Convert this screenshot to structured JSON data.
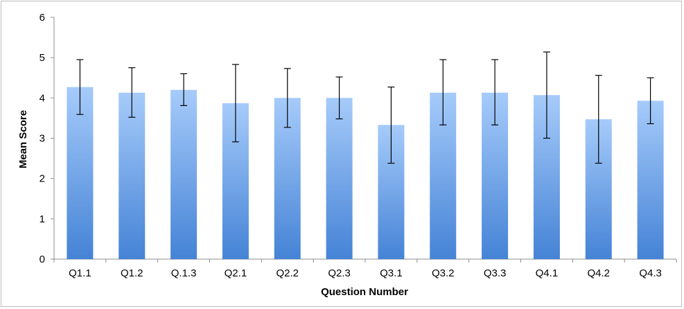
{
  "chart_data": {
    "type": "bar",
    "title": "",
    "xlabel": "Question Number",
    "ylabel": "Mean Score",
    "ylim": [
      0,
      6
    ],
    "yticks": [
      0,
      1,
      2,
      3,
      4,
      5,
      6
    ],
    "grid": false,
    "legend": "none",
    "categories": [
      "Q1.1",
      "Q1.2",
      "Q.1.3",
      "Q2.1",
      "Q2.2",
      "Q2.3",
      "Q3.1",
      "Q3.2",
      "Q3.3",
      "Q4.1",
      "Q4.2",
      "Q4.3"
    ],
    "values": [
      4.27,
      4.13,
      4.2,
      3.87,
      4.0,
      4.0,
      3.33,
      4.13,
      4.13,
      4.07,
      3.47,
      3.93
    ],
    "error_low": [
      3.59,
      3.52,
      3.81,
      2.91,
      3.27,
      3.48,
      2.38,
      3.33,
      3.33,
      3.0,
      2.38,
      3.36
    ],
    "error_high": [
      4.95,
      4.75,
      4.6,
      4.83,
      4.73,
      4.52,
      4.27,
      4.95,
      4.95,
      5.14,
      4.56,
      4.5
    ],
    "colors": {
      "bar_top": "#a6cbfa",
      "bar_bottom": "#4583d6",
      "axis": "#8c8c8c",
      "error_bar": "#000000"
    }
  }
}
